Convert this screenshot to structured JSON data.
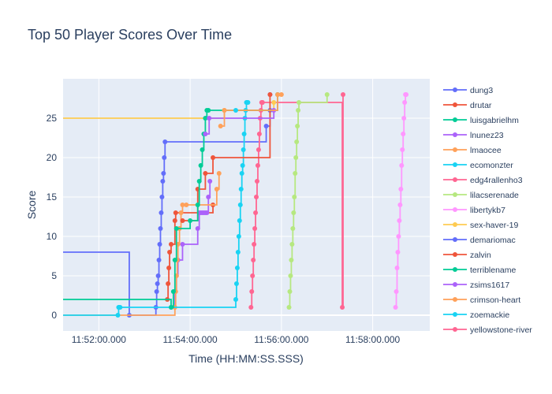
{
  "chart_data": {
    "type": "line",
    "title": "Top 50 Player Scores Over Time",
    "xlabel": "Time (HH:MM:SS.SSS)",
    "ylabel": "Score",
    "x_ticks": [
      "11:52:00.000",
      "11:54:00.000",
      "11:56:00.000",
      "11:58:00.000"
    ],
    "y_ticks": [
      "0",
      "5",
      "10",
      "15",
      "20",
      "25"
    ],
    "ylim": [
      -2,
      30
    ],
    "grid": true,
    "legend_position": "right",
    "line_shape": "step",
    "series": [
      {
        "name": "dung3",
        "color": "#636efa",
        "x": [
          "11:51:00.000",
          "11:52:40.000",
          "11:53:15.000",
          "11:53:16.000",
          "11:53:17.000",
          "11:53:18.000",
          "11:53:19.000",
          "11:53:20.000",
          "11:53:21.000",
          "11:53:22.000",
          "11:53:23.000",
          "11:53:24.000",
          "11:53:25.000",
          "11:53:26.000",
          "11:53:27.000",
          "11:55:40.000",
          "11:55:45.000"
        ],
        "y": [
          8,
          0,
          1,
          3,
          4,
          5,
          7,
          9,
          11,
          13,
          15,
          17,
          18,
          20,
          22,
          24,
          26
        ]
      },
      {
        "name": "drutar",
        "color": "#ef553b",
        "x": [
          "11:53:30.000",
          "11:53:31.000",
          "11:53:32.000",
          "11:53:33.000",
          "11:53:35.000",
          "11:53:40.000",
          "11:53:41.000",
          "11:54:30.000"
        ],
        "y": [
          2,
          4,
          6,
          8,
          9,
          12,
          13,
          14
        ]
      },
      {
        "name": "luisgabrielhm",
        "color": "#00cc96",
        "x": [
          "11:50:00.000"
        ],
        "y": [
          0
        ]
      },
      {
        "name": "lnunez23",
        "color": "#ab63fa",
        "x": [
          "11:53:35.000",
          "11:53:40.000",
          "11:53:42.000",
          "11:53:44.000",
          "11:53:50.000",
          "11:54:10.000",
          "11:54:12.000",
          "11:54:14.000",
          "11:54:16.000",
          "11:54:18.000",
          "11:54:20.000",
          "11:54:22.000",
          "11:54:24.000",
          "11:54:26.000"
        ],
        "y": [
          1,
          3,
          5,
          7,
          9,
          11,
          13,
          13,
          13,
          13,
          13,
          13,
          15,
          17
        ]
      },
      {
        "name": "lmaocee",
        "color": "#ffa15a",
        "x": [
          "11:51:00.000",
          "11:53:40.000",
          "11:53:41.000",
          "11:53:42.000",
          "11:53:43.000",
          "11:53:44.000",
          "11:53:46.000",
          "11:53:48.000",
          "11:53:50.000",
          "11:53:55.000",
          "11:54:35.000",
          "11:54:38.000"
        ],
        "y": [
          0,
          1,
          3,
          5,
          7,
          9,
          11,
          13,
          14,
          14,
          16,
          18
        ]
      },
      {
        "name": "ecomonzter",
        "color": "#19d3f3",
        "x": [
          "11:51:00.000",
          "11:52:25.000",
          "11:52:26.000",
          "11:52:27.000",
          "11:52:28.000",
          "11:55:00.000",
          "11:55:01.000",
          "11:55:02.000",
          "11:55:03.000",
          "11:55:04.000",
          "11:55:05.000",
          "11:55:06.000",
          "11:55:07.000",
          "11:55:08.000",
          "11:55:09.000",
          "11:55:10.000",
          "11:55:11.000",
          "11:55:12.000",
          "11:55:13.000",
          "11:55:14.000",
          "11:55:15.000",
          "11:55:16.000"
        ],
        "y": [
          0,
          0,
          1,
          1,
          1,
          2,
          4,
          6,
          8,
          10,
          12,
          14,
          16,
          18,
          19,
          21,
          23,
          25,
          26,
          27,
          27,
          27
        ]
      },
      {
        "name": "edg4rallenho3",
        "color": "#ff6692",
        "x": [
          "11:55:20.000",
          "11:55:21.000",
          "11:55:22.000",
          "11:55:23.000",
          "11:55:24.000",
          "11:55:25.000",
          "11:55:26.000",
          "11:55:27.000",
          "11:55:28.000",
          "11:55:29.000",
          "11:55:30.000",
          "11:55:31.000",
          "11:55:32.000",
          "11:55:33.000",
          "11:55:34.000",
          "11:55:35.000",
          "11:57:20.000",
          "11:57:21.000"
        ],
        "y": [
          1,
          3,
          5,
          7,
          9,
          11,
          13,
          15,
          17,
          19,
          21,
          23,
          25,
          26,
          27,
          27,
          1,
          28
        ]
      },
      {
        "name": "lilacserenade",
        "color": "#b6e880",
        "x": [
          "11:56:10.000",
          "11:56:11.000",
          "11:56:12.000",
          "11:56:13.000",
          "11:56:14.000",
          "11:56:15.000",
          "11:56:16.000",
          "11:56:17.000",
          "11:56:18.000",
          "11:56:19.000",
          "11:56:20.000",
          "11:56:21.000",
          "11:56:22.000",
          "11:56:23.000",
          "11:57:00.000"
        ],
        "y": [
          1,
          3,
          5,
          7,
          9,
          11,
          13,
          15,
          18,
          20,
          22,
          24,
          26,
          27,
          28
        ]
      },
      {
        "name": "libertykb7",
        "color": "#ff97ff",
        "x": [
          "11:58:30.000",
          "11:58:31.000",
          "11:58:32.000",
          "11:58:33.000",
          "11:58:34.000",
          "11:58:35.000",
          "11:58:36.000",
          "11:58:37.000",
          "11:58:38.000",
          "11:58:39.000",
          "11:58:40.000",
          "11:58:41.000",
          "11:58:42.000",
          "11:58:43.000",
          "11:58:44.000"
        ],
        "y": [
          1,
          3,
          6,
          8,
          10,
          12,
          14,
          16,
          19,
          21,
          23,
          25,
          27,
          28,
          28
        ]
      },
      {
        "name": "sex-haver-19",
        "color": "#fecb52",
        "x": [
          "11:51:00.000",
          "11:51:10.000",
          "11:54:45.000",
          "11:55:50.000"
        ],
        "y": [
          24,
          25,
          26,
          27
        ]
      },
      {
        "name": "demariomac",
        "color": "#636efa",
        "x": [
          "11:55:45.000"
        ],
        "y": [
          28
        ]
      },
      {
        "name": "zalvin",
        "color": "#ef553b",
        "x": [
          "11:53:50.000",
          "11:54:10.000",
          "11:54:20.000",
          "11:54:30.000",
          "11:55:45.000"
        ],
        "y": [
          12,
          16,
          18,
          20,
          28
        ]
      },
      {
        "name": "terriblename",
        "color": "#00cc96",
        "x": [
          "11:51:00.000",
          "11:53:35.000",
          "11:53:38.000",
          "11:53:40.000",
          "11:53:42.000",
          "11:54:00.000",
          "11:54:10.000",
          "11:54:12.000",
          "11:54:14.000",
          "11:54:16.000",
          "11:54:18.000",
          "11:54:20.000",
          "11:54:22.000",
          "11:54:24.000",
          "11:55:55.000"
        ],
        "y": [
          2,
          1,
          3,
          7,
          11,
          12,
          14,
          17,
          19,
          21,
          23,
          25,
          26,
          26,
          28
        ]
      },
      {
        "name": "zsims1617",
        "color": "#ab63fa",
        "x": [
          "11:54:20.000",
          "11:54:25.000",
          "11:55:50.000"
        ],
        "y": [
          23,
          25,
          26
        ]
      },
      {
        "name": "crimson-heart",
        "color": "#ffa15a",
        "x": [
          "11:54:40.000",
          "11:54:45.000",
          "11:55:55.000",
          "11:56:00.000"
        ],
        "y": [
          24,
          26,
          28,
          28
        ]
      },
      {
        "name": "zoemackie",
        "color": "#19d3f3",
        "x": [
          "11:55:00.000"
        ],
        "y": [
          26
        ]
      },
      {
        "name": "yellowstone-river",
        "color": "#ff6692",
        "x": [
          "11:55:35.000"
        ],
        "y": [
          27
        ]
      }
    ]
  }
}
